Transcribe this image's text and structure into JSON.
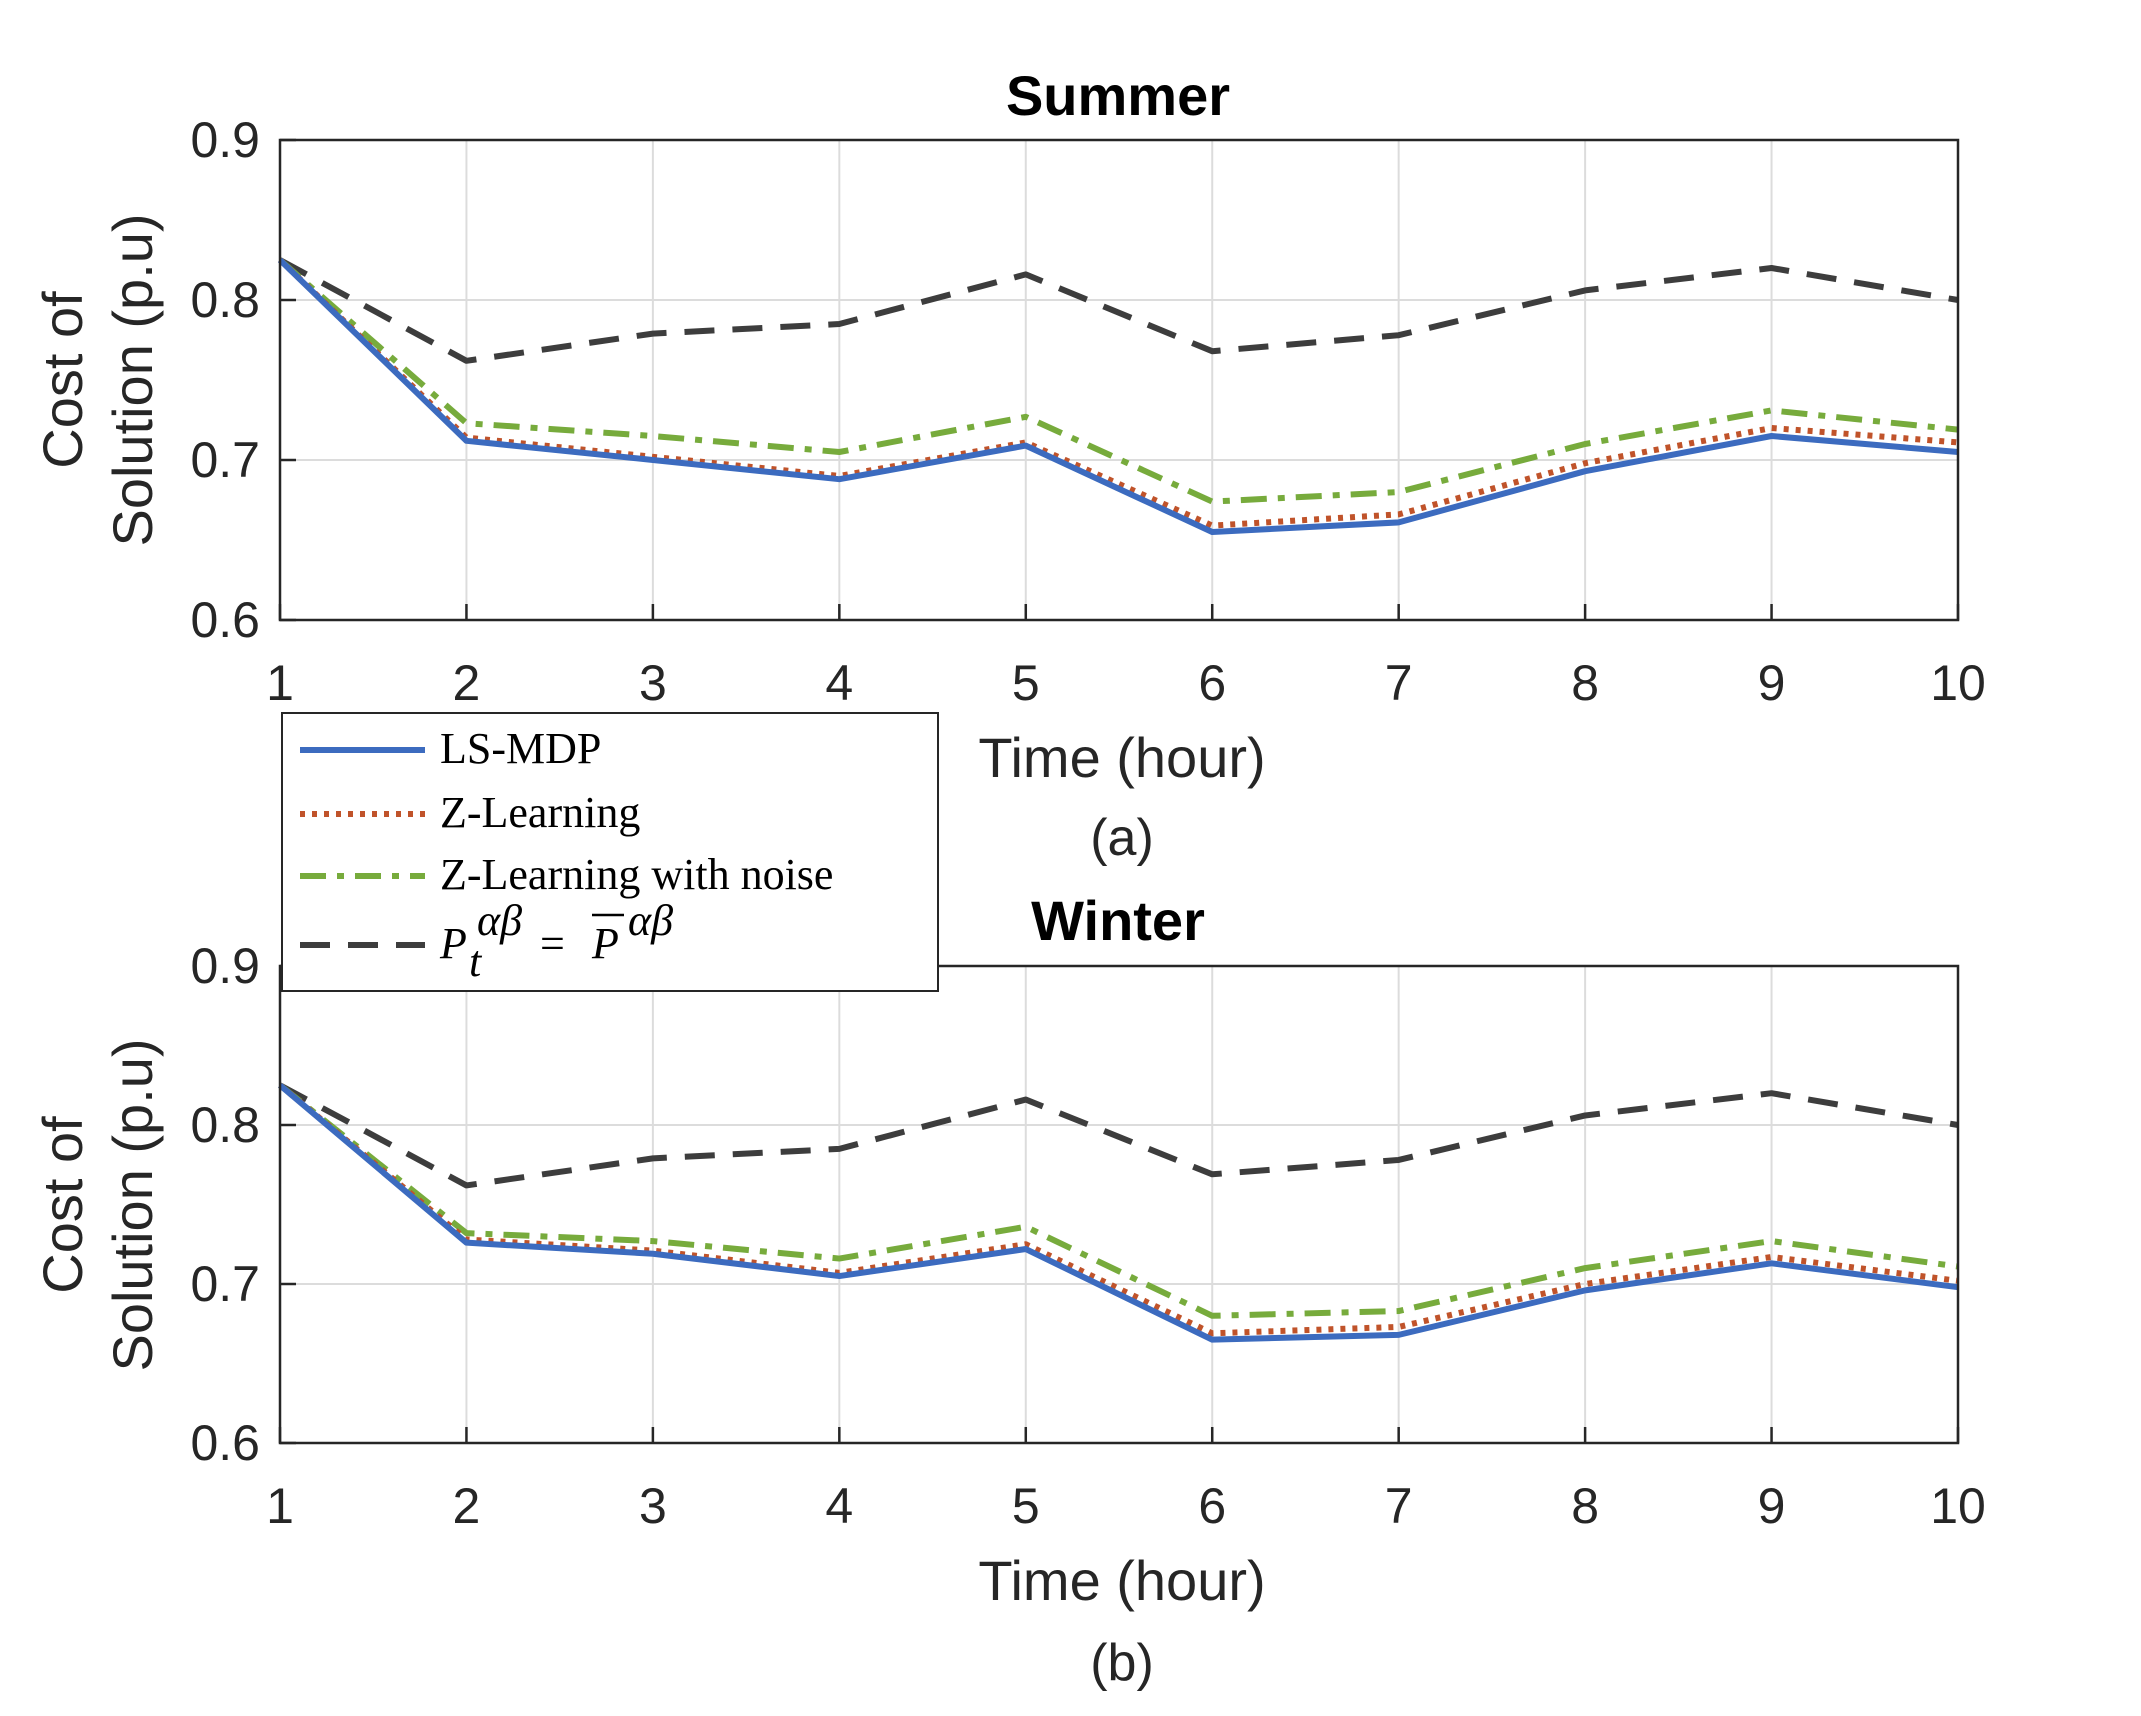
{
  "chart_data": [
    {
      "type": "line",
      "title": "Summer",
      "caption": "(a)",
      "xlabel": "Time (hour)",
      "ylabel": [
        "Cost of",
        "Solution (p.u)"
      ],
      "xlim": [
        1,
        10
      ],
      "ylim": [
        0.6,
        0.9
      ],
      "xticks": [
        "1",
        "2",
        "3",
        "4",
        "5",
        "6",
        "7",
        "8",
        "9",
        "10"
      ],
      "yticks": [
        "0.6",
        "0.7",
        "0.8",
        "0.9"
      ],
      "grid": true,
      "x": [
        1,
        2,
        3,
        4,
        5,
        6,
        7,
        8,
        9,
        10
      ],
      "series": [
        {
          "name": "LS-MDP",
          "color": "#3c6bbf",
          "style": "solid",
          "values": [
            0.825,
            0.712,
            0.7,
            0.688,
            0.709,
            0.655,
            0.661,
            0.693,
            0.715,
            0.705
          ]
        },
        {
          "name": "Z-Learning",
          "color": "#c0532a",
          "style": "dotted",
          "values": [
            0.825,
            0.714,
            0.702,
            0.69,
            0.711,
            0.659,
            0.666,
            0.698,
            0.72,
            0.711
          ]
        },
        {
          "name": "Z-Learning with noise",
          "color": "#77ab3c",
          "style": "dashdot",
          "values": [
            0.825,
            0.723,
            0.715,
            0.705,
            0.727,
            0.674,
            0.68,
            0.71,
            0.731,
            0.719
          ]
        },
        {
          "name": "P_t^αβ = P̄^αβ",
          "color": "#3d3d3d",
          "style": "dashed",
          "values": [
            0.825,
            0.762,
            0.779,
            0.785,
            0.816,
            0.768,
            0.778,
            0.806,
            0.82,
            0.8
          ]
        }
      ]
    },
    {
      "type": "line",
      "title": "Winter",
      "caption": "(b)",
      "xlabel": "Time (hour)",
      "ylabel": [
        "Cost of",
        "Solution (p.u)"
      ],
      "xlim": [
        1,
        10
      ],
      "ylim": [
        0.6,
        0.9
      ],
      "xticks": [
        "1",
        "2",
        "3",
        "4",
        "5",
        "6",
        "7",
        "8",
        "9",
        "10"
      ],
      "yticks": [
        "0.6",
        "0.7",
        "0.8",
        "0.9"
      ],
      "grid": true,
      "x": [
        1,
        2,
        3,
        4,
        5,
        6,
        7,
        8,
        9,
        10
      ],
      "series": [
        {
          "name": "LS-MDP",
          "color": "#3c6bbf",
          "style": "solid",
          "values": [
            0.825,
            0.726,
            0.719,
            0.705,
            0.722,
            0.665,
            0.668,
            0.696,
            0.713,
            0.698
          ]
        },
        {
          "name": "Z-Learning",
          "color": "#c0532a",
          "style": "dotted",
          "values": [
            0.825,
            0.728,
            0.721,
            0.707,
            0.725,
            0.669,
            0.673,
            0.7,
            0.717,
            0.702
          ]
        },
        {
          "name": "Z-Learning with noise",
          "color": "#77ab3c",
          "style": "dashdot",
          "values": [
            0.825,
            0.732,
            0.727,
            0.716,
            0.736,
            0.68,
            0.683,
            0.71,
            0.727,
            0.711
          ]
        },
        {
          "name": "P_t^αβ = P̄^αβ",
          "color": "#3d3d3d",
          "style": "dashed",
          "values": [
            0.825,
            0.762,
            0.779,
            0.785,
            0.816,
            0.769,
            0.778,
            0.806,
            0.82,
            0.8
          ]
        }
      ]
    }
  ],
  "legend": {
    "placement": "between panels, left",
    "entries": [
      {
        "label": "LS-MDP",
        "color": "#3c6bbf",
        "style": "solid"
      },
      {
        "label": "Z-Learning",
        "color": "#c0532a",
        "style": "dotted"
      },
      {
        "label": "Z-Learning with noise",
        "color": "#77ab3c",
        "style": "dashdot"
      },
      {
        "label": "P_t^αβ = P̄^αβ",
        "color": "#3d3d3d",
        "style": "dashed",
        "math": {
          "lhs": "P",
          "sub": "t",
          "sup": "αβ",
          "eq": "=",
          "rhs": "P",
          "rhs_sup": "αβ"
        }
      }
    ]
  }
}
